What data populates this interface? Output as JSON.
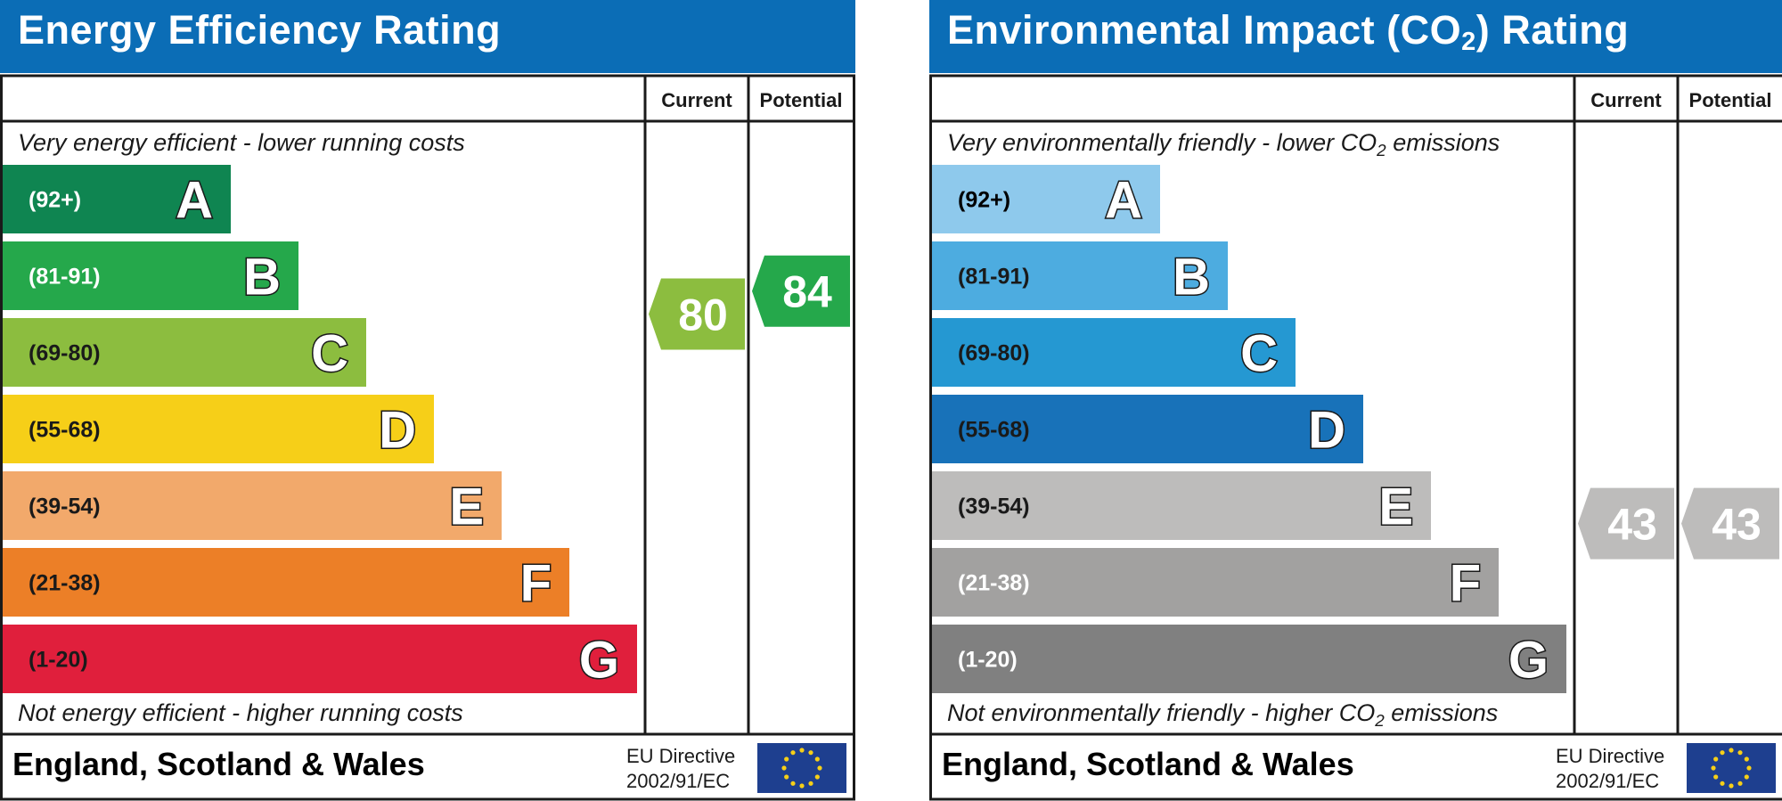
{
  "chart_data": [
    {
      "type": "bar",
      "title": "Energy Efficiency Rating",
      "column_headers": [
        "Current",
        "Potential"
      ],
      "top_note": "Very energy efficient - lower running costs",
      "bottom_note": "Not energy efficient - higher running costs",
      "footer_region": "England, Scotland & Wales",
      "directive_line1": "EU Directive",
      "directive_line2": "2002/91/EC",
      "bands": [
        {
          "letter": "A",
          "range": "(92+)",
          "min": 92,
          "max": 100,
          "color": "#0f8551",
          "text_color": "#ffffff"
        },
        {
          "letter": "B",
          "range": "(81-91)",
          "min": 81,
          "max": 91,
          "color": "#25a84b",
          "text_color": "#ffffff"
        },
        {
          "letter": "C",
          "range": "(69-80)",
          "min": 69,
          "max": 80,
          "color": "#8cbd3f",
          "text_color": "#1a1a1a"
        },
        {
          "letter": "D",
          "range": "(55-68)",
          "min": 55,
          "max": 68,
          "color": "#f6cf18",
          "text_color": "#1a1a1a"
        },
        {
          "letter": "E",
          "range": "(39-54)",
          "min": 39,
          "max": 54,
          "color": "#f2a96b",
          "text_color": "#1a1a1a"
        },
        {
          "letter": "F",
          "range": "(21-38)",
          "min": 21,
          "max": 38,
          "color": "#ec7f27",
          "text_color": "#1a1a1a"
        },
        {
          "letter": "G",
          "range": "(1-20)",
          "min": 1,
          "max": 20,
          "color": "#e01f3c",
          "text_color": "#1a1a1a"
        }
      ],
      "current": {
        "value": 80,
        "label": "80",
        "color": "#8cbd3f"
      },
      "potential": {
        "value": 84,
        "label": "84",
        "color": "#25a84b"
      }
    },
    {
      "type": "bar",
      "title": "Environmental Impact (CO",
      "title_sub": "2",
      "title_end": ") Rating",
      "column_headers": [
        "Current",
        "Potential"
      ],
      "top_note": "Very environmentally friendly - lower CO",
      "top_note_sub": "2",
      "top_note_end": " emissions",
      "bottom_note": "Not environmentally friendly - higher CO",
      "bottom_note_sub": "2",
      "bottom_note_end": " emissions",
      "footer_region": "England, Scotland & Wales",
      "directive_line1": "EU Directive",
      "directive_line2": "2002/91/EC",
      "bands": [
        {
          "letter": "A",
          "range": "(92+)",
          "min": 92,
          "max": 100,
          "color": "#8ec9ec",
          "text_color": "#000000"
        },
        {
          "letter": "B",
          "range": "(81-91)",
          "min": 81,
          "max": 91,
          "color": "#4dace0",
          "text_color": "#1a1a1a"
        },
        {
          "letter": "C",
          "range": "(69-80)",
          "min": 69,
          "max": 80,
          "color": "#2598d2",
          "text_color": "#1a1a1a"
        },
        {
          "letter": "D",
          "range": "(55-68)",
          "min": 55,
          "max": 68,
          "color": "#1872b9",
          "text_color": "#1a1a1a"
        },
        {
          "letter": "E",
          "range": "(39-54)",
          "min": 39,
          "max": 54,
          "color": "#bdbcbb",
          "text_color": "#1a1a1a"
        },
        {
          "letter": "F",
          "range": "(21-38)",
          "min": 21,
          "max": 38,
          "color": "#a2a1a0",
          "text_color": "#ffffff"
        },
        {
          "letter": "G",
          "range": "(1-20)",
          "min": 1,
          "max": 20,
          "color": "#808080",
          "text_color": "#ffffff"
        }
      ],
      "current": {
        "value": 43,
        "label": "43",
        "color": "#bdbcbb"
      },
      "potential": {
        "value": 43,
        "label": "43",
        "color": "#bdbcbb"
      }
    }
  ]
}
